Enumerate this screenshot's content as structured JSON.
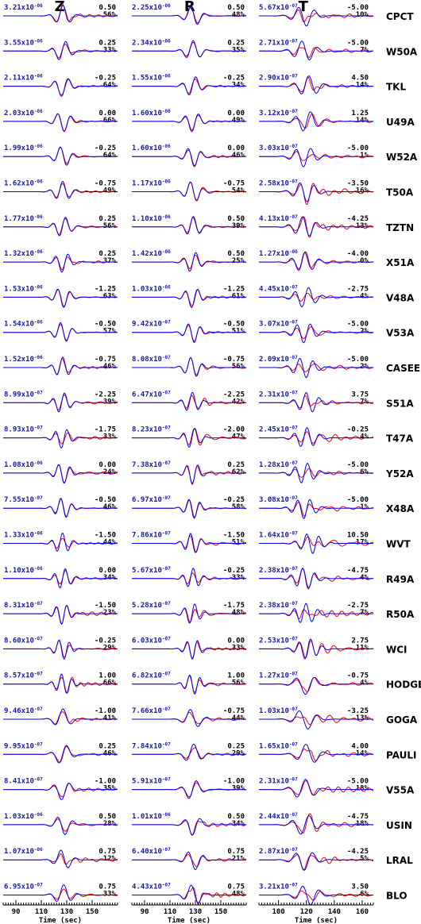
{
  "chart_data": {
    "type": "line",
    "components": [
      {
        "label": "Z",
        "xlim": [
          80,
          170
        ],
        "ticks": [
          90,
          110,
          130,
          150
        ],
        "xlabel": "Time (sec)"
      },
      {
        "label": "R",
        "xlim": [
          80,
          170
        ],
        "ticks": [
          90,
          110,
          130,
          150
        ],
        "xlabel": "Time (sec)"
      },
      {
        "label": "T",
        "xlim": [
          86,
          168
        ],
        "ticks": [
          100,
          120,
          140,
          160
        ],
        "xlabel": "Time (sec)"
      }
    ],
    "series_colors": {
      "observed": "#ff0000",
      "synthetic": "#0000ff"
    },
    "stations": [
      {
        "name": "CPCT",
        "Z": [
          "3.21x10",
          "-06",
          "0.50",
          "56%"
        ],
        "R": [
          "2.25x10",
          "-06",
          "0.50",
          "48%"
        ],
        "T": [
          "5.67x10",
          "-07",
          "-5.00",
          "10%"
        ]
      },
      {
        "name": "W50A",
        "Z": [
          "3.55x10",
          "-06",
          "0.25",
          "33%"
        ],
        "R": [
          "2.34x10",
          "-06",
          "0.25",
          "35%"
        ],
        "T": [
          "2.71x10",
          "-07",
          "-5.00",
          "7%"
        ]
      },
      {
        "name": "TKL",
        "Z": [
          "2.11x10",
          "-06",
          "-0.25",
          "64%"
        ],
        "R": [
          "1.55x10",
          "-06",
          "-0.25",
          "34%"
        ],
        "T": [
          "2.90x10",
          "-07",
          "4.50",
          "14%"
        ]
      },
      {
        "name": "U49A",
        "Z": [
          "2.03x10",
          "-06",
          "0.00",
          "66%"
        ],
        "R": [
          "1.60x10",
          "-06",
          "0.00",
          "49%"
        ],
        "T": [
          "3.12x10",
          "-07",
          "1.25",
          "14%"
        ]
      },
      {
        "name": "W52A",
        "Z": [
          "1.99x10",
          "-06",
          "-0.25",
          "64%"
        ],
        "R": [
          "1.60x10",
          "-06",
          "0.00",
          "46%"
        ],
        "T": [
          "3.03x10",
          "-07",
          "-5.00",
          "1%"
        ]
      },
      {
        "name": "T50A",
        "Z": [
          "1.62x10",
          "-06",
          "-0.75",
          "49%"
        ],
        "R": [
          "1.17x10",
          "-06",
          "-0.75",
          "54%"
        ],
        "T": [
          "2.58x10",
          "-07",
          "-3.50",
          "16%"
        ]
      },
      {
        "name": "TZTN",
        "Z": [
          "1.77x10",
          "-06",
          "0.25",
          "56%"
        ],
        "R": [
          "1.10x10",
          "-06",
          "0.50",
          "39%"
        ],
        "T": [
          "4.13x10",
          "-07",
          "-4.25",
          "13%"
        ]
      },
      {
        "name": "X51A",
        "Z": [
          "1.32x10",
          "-06",
          "0.25",
          "37%"
        ],
        "R": [
          "1.42x10",
          "-06",
          "0.50",
          "25%"
        ],
        "T": [
          "1.27x10",
          "-06",
          "-4.00",
          "0%"
        ]
      },
      {
        "name": "V48A",
        "Z": [
          "1.53x10",
          "-06",
          "-1.25",
          "63%"
        ],
        "R": [
          "1.03x10",
          "-06",
          "-1.25",
          "61%"
        ],
        "T": [
          "4.45x10",
          "-07",
          "-2.75",
          "4%"
        ]
      },
      {
        "name": "V53A",
        "Z": [
          "1.54x10",
          "-06",
          "-0.50",
          "57%"
        ],
        "R": [
          "9.42x10",
          "-07",
          "-0.50",
          "51%"
        ],
        "T": [
          "3.07x10",
          "-07",
          "-5.00",
          "2%"
        ]
      },
      {
        "name": "CASEE",
        "Z": [
          "1.52x10",
          "-06",
          "-0.75",
          "46%"
        ],
        "R": [
          "8.08x10",
          "-07",
          "-0.75",
          "56%"
        ],
        "T": [
          "2.09x10",
          "-07",
          "-5.00",
          "2%"
        ]
      },
      {
        "name": "S51A",
        "Z": [
          "8.99x10",
          "-07",
          "-2.25",
          "39%"
        ],
        "R": [
          "6.47x10",
          "-07",
          "-2.25",
          "42%"
        ],
        "T": [
          "2.31x10",
          "-07",
          "3.75",
          "7%"
        ]
      },
      {
        "name": "T47A",
        "Z": [
          "8.93x10",
          "-07",
          "-1.75",
          "33%"
        ],
        "R": [
          "8.23x10",
          "-07",
          "-2.00",
          "47%"
        ],
        "T": [
          "2.45x10",
          "-07",
          "-0.25",
          "4%"
        ]
      },
      {
        "name": "Y52A",
        "Z": [
          "1.08x10",
          "-06",
          "0.00",
          "24%"
        ],
        "R": [
          "7.38x10",
          "-07",
          "0.25",
          "62%"
        ],
        "T": [
          "1.28x10",
          "-07",
          "-5.00",
          "6%"
        ]
      },
      {
        "name": "X48A",
        "Z": [
          "7.55x10",
          "-07",
          "-0.50",
          "46%"
        ],
        "R": [
          "6.97x10",
          "-07",
          "-0.25",
          "58%"
        ],
        "T": [
          "3.08x10",
          "-07",
          "-5.00",
          "1%"
        ]
      },
      {
        "name": "WVT",
        "Z": [
          "1.33x10",
          "-06",
          "-1.50",
          "44%"
        ],
        "R": [
          "7.86x10",
          "-07",
          "-1.50",
          "51%"
        ],
        "T": [
          "1.64x10",
          "-07",
          "10.50",
          "17%"
        ]
      },
      {
        "name": "R49A",
        "Z": [
          "1.10x10",
          "-06",
          "0.00",
          "34%"
        ],
        "R": [
          "5.67x10",
          "-07",
          "-0.25",
          "33%"
        ],
        "T": [
          "2.38x10",
          "-07",
          "-4.75",
          "4%"
        ]
      },
      {
        "name": "R50A",
        "Z": [
          "8.31x10",
          "-07",
          "-1.50",
          "23%"
        ],
        "R": [
          "5.28x10",
          "-07",
          "-1.75",
          "48%"
        ],
        "T": [
          "2.38x10",
          "-07",
          "-2.75",
          "7%"
        ]
      },
      {
        "name": "WCI",
        "Z": [
          "8.60x10",
          "-07",
          "-0.25",
          "29%"
        ],
        "R": [
          "6.03x10",
          "-07",
          "0.00",
          "33%"
        ],
        "T": [
          "2.53x10",
          "-07",
          "2.75",
          "11%"
        ]
      },
      {
        "name": "HODGE",
        "Z": [
          "8.57x10",
          "-07",
          "1.00",
          "66%"
        ],
        "R": [
          "6.82x10",
          "-07",
          "1.00",
          "56%"
        ],
        "T": [
          "1.27x10",
          "-07",
          "-0.75",
          "4%"
        ]
      },
      {
        "name": "GOGA",
        "Z": [
          "9.46x10",
          "-07",
          "-1.00",
          "41%"
        ],
        "R": [
          "7.66x10",
          "-07",
          "-0.75",
          "44%"
        ],
        "T": [
          "1.03x10",
          "-07",
          "-3.25",
          "13%"
        ]
      },
      {
        "name": "PAULI",
        "Z": [
          "9.95x10",
          "-07",
          "0.25",
          "46%"
        ],
        "R": [
          "7.84x10",
          "-07",
          "0.25",
          "29%"
        ],
        "T": [
          "1.65x10",
          "-07",
          "4.00",
          "14%"
        ]
      },
      {
        "name": "V55A",
        "Z": [
          "8.41x10",
          "-07",
          "-1.00",
          "35%"
        ],
        "R": [
          "5.91x10",
          "-07",
          "-1.00",
          "39%"
        ],
        "T": [
          "2.31x10",
          "-07",
          "-5.00",
          "18%"
        ]
      },
      {
        "name": "USIN",
        "Z": [
          "1.03x10",
          "-06",
          "0.50",
          "28%"
        ],
        "R": [
          "1.01x10",
          "-06",
          "0.50",
          "34%"
        ],
        "T": [
          "2.44x10",
          "-07",
          "-4.75",
          "18%"
        ]
      },
      {
        "name": "LRAL",
        "Z": [
          "1.07x10",
          "-06",
          "0.75",
          "12%"
        ],
        "R": [
          "6.40x10",
          "-07",
          "0.75",
          "21%"
        ],
        "T": [
          "2.87x10",
          "-07",
          "-4.25",
          "5%"
        ]
      },
      {
        "name": "BLO",
        "Z": [
          "6.95x10",
          "-07",
          "0.75",
          "33%"
        ],
        "R": [
          "4.43x10",
          "-07",
          "0.75",
          "48%"
        ],
        "T": [
          "3.21x10",
          "-07",
          "3.50",
          "6%"
        ]
      }
    ]
  }
}
